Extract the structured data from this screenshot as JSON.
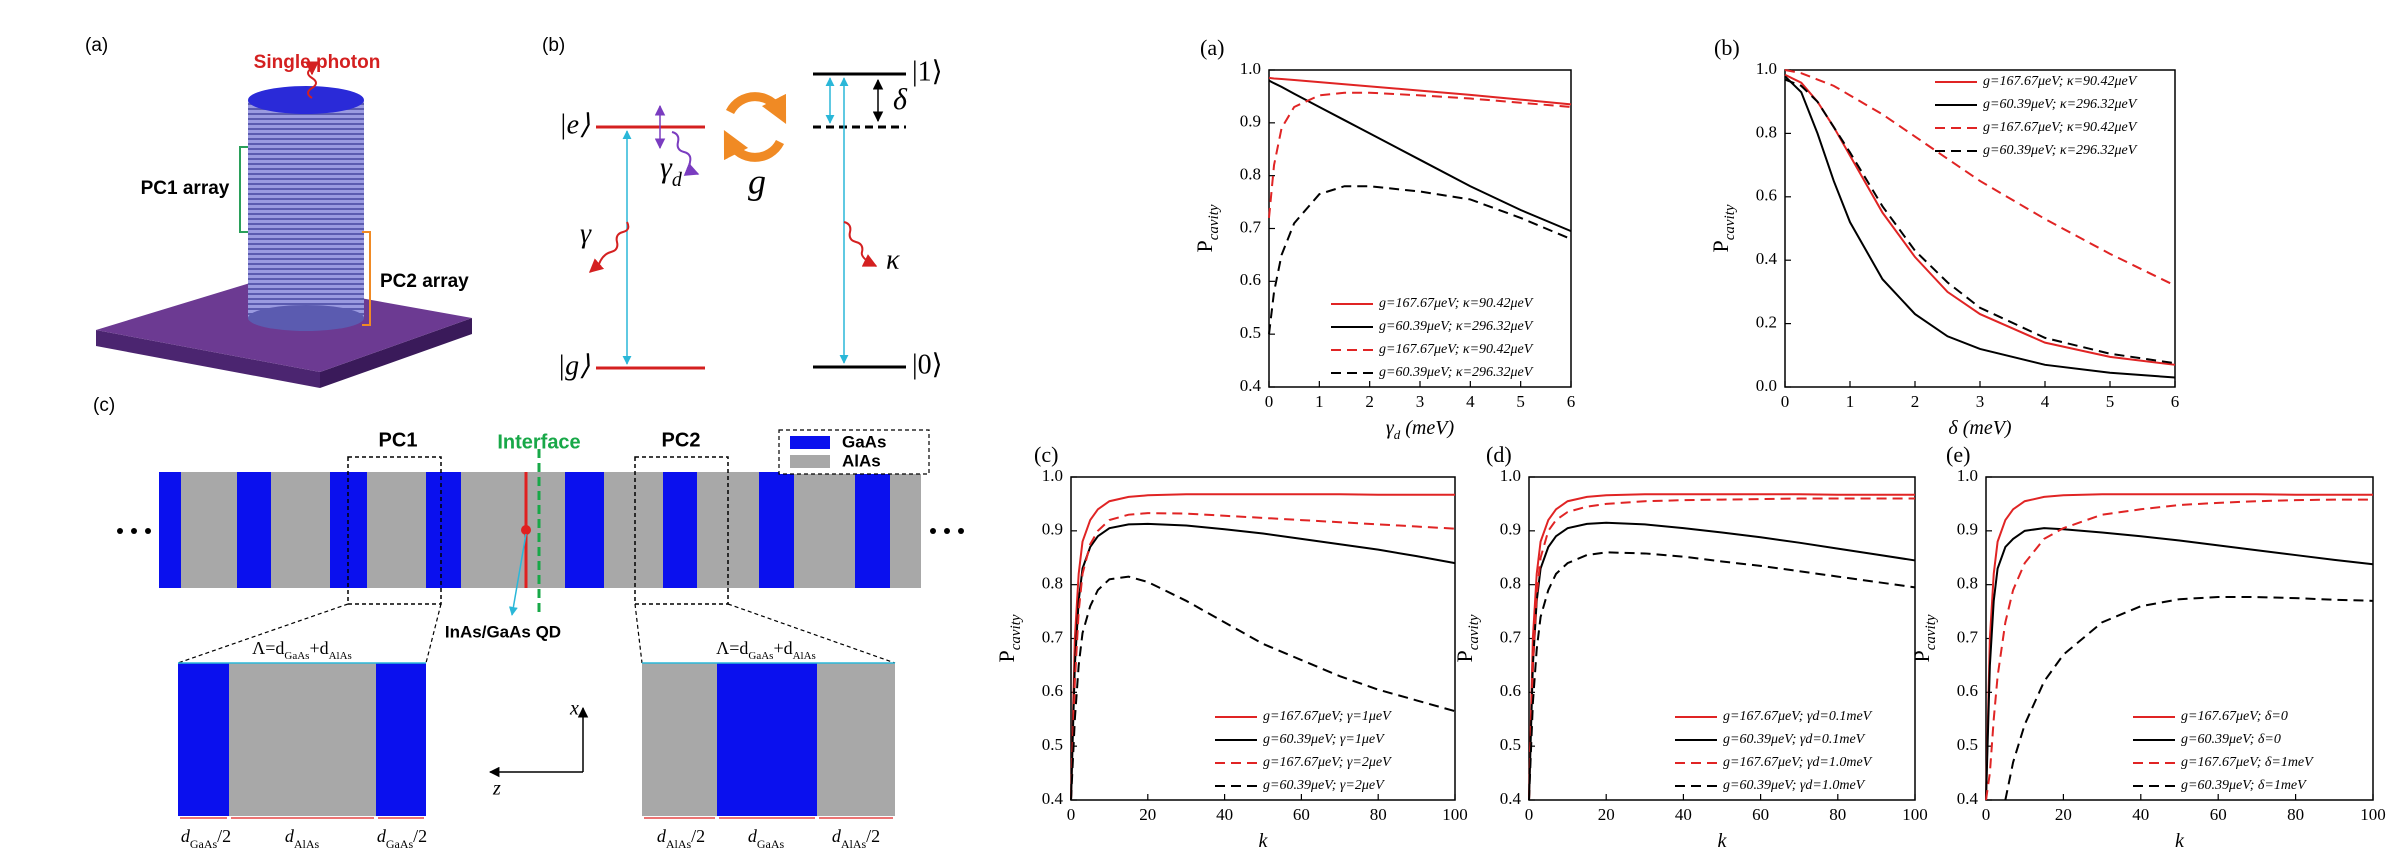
{
  "diagram": {
    "panel_a": {
      "label": "(a)",
      "single_photon": "Single photon",
      "pc1_array": "PC1 array",
      "pc2_array": "PC2 array"
    },
    "panel_b": {
      "label": "(b)",
      "ket_e": "|e⟩",
      "ket_g": "|g⟩",
      "ket_1": "|1⟩",
      "ket_0": "|0⟩",
      "delta": "δ",
      "coupling": "g",
      "gamma_d": "γ",
      "gamma_d_sub": "d",
      "gamma": "γ",
      "kappa": "κ"
    },
    "panel_c": {
      "label": "(c)",
      "pc1": "PC1",
      "interface": "Interface",
      "pc2": "PC2",
      "legend": [
        "GaAs",
        "AlAs"
      ],
      "qd": "InAs/GaAs QD",
      "period_left": [
        "Λ=d",
        "GaAs",
        "+d",
        "AlAs"
      ],
      "period_right": [
        "Λ=d",
        "GaAs",
        "+d",
        "AlAs"
      ],
      "x_axis": "x",
      "z_axis": "z",
      "widths_left": [
        [
          "d",
          "GaAs",
          "/2"
        ],
        [
          "d",
          "AlAs"
        ],
        [
          "d",
          "GaAs",
          "/2"
        ]
      ],
      "widths_right": [
        [
          "d",
          "AlAs",
          "/2"
        ],
        [
          "d",
          "GaAs"
        ],
        [
          "d",
          "AlAs",
          "/2"
        ]
      ]
    }
  },
  "chart_data": [
    {
      "type": "line",
      "label": "(a)",
      "xlabel": "γ",
      "xlabel_sub": "d",
      "xlabel_unit": "(meV)",
      "ylabel": "P",
      "ylabel_sub": "cavity",
      "x": [
        0,
        0.1,
        0.25,
        0.5,
        1,
        1.5,
        2,
        3,
        4,
        5,
        6
      ],
      "xlim": [
        0,
        6
      ],
      "xticks": [
        0,
        1,
        2,
        3,
        4,
        5,
        6
      ],
      "ylim": [
        0.4,
        1
      ],
      "yticks": [
        0.4,
        0.5,
        0.6,
        0.7,
        0.8,
        0.9,
        {
          "value": 1,
          "label": "1.0"
        }
      ],
      "legend_loc": "lower right",
      "series": [
        {
          "name": "g=167.67μeV;  κ=90.42μeV",
          "color": "#e02424",
          "linestyle": "solid",
          "values": [
            0.985,
            0.984,
            0.983,
            0.981,
            0.977,
            0.973,
            0.969,
            0.961,
            0.953,
            0.944,
            0.935
          ]
        },
        {
          "name": "g=60.39μeV;   κ=296.32μeV",
          "color": "#000000",
          "linestyle": "solid",
          "values": [
            0.98,
            0.975,
            0.968,
            0.955,
            0.93,
            0.905,
            0.88,
            0.83,
            0.78,
            0.735,
            0.695
          ]
        },
        {
          "name": "g=167.67μeV;  κ=90.42μeV",
          "color": "#e02424",
          "linestyle": "dashed",
          "values": [
            0.72,
            0.82,
            0.89,
            0.93,
            0.952,
            0.957,
            0.957,
            0.952,
            0.946,
            0.938,
            0.93
          ]
        },
        {
          "name": "g=60.39μeV;   κ=296.32μeV",
          "color": "#000000",
          "linestyle": "dashed",
          "values": [
            0.5,
            0.58,
            0.65,
            0.71,
            0.765,
            0.78,
            0.78,
            0.77,
            0.755,
            0.72,
            0.68
          ]
        }
      ]
    },
    {
      "type": "line",
      "label": "(b)",
      "xlabel": "δ (meV)",
      "ylabel": "P",
      "ylabel_sub": "cavity",
      "x": [
        0,
        0.25,
        0.5,
        0.75,
        1,
        1.5,
        2,
        2.5,
        3,
        4,
        5,
        6
      ],
      "xlim": [
        0,
        6
      ],
      "xticks": [
        0,
        1,
        2,
        3,
        4,
        5,
        6
      ],
      "ylim": [
        0,
        1
      ],
      "yticks": [
        {
          "value": 0,
          "label": "0.0"
        },
        0.2,
        0.4,
        0.6,
        0.8,
        {
          "value": 1,
          "label": "1.0"
        }
      ],
      "legend_loc": "upper right",
      "series": [
        {
          "name": "g=167.67μeV; κ=90.42μeV",
          "color": "#e02424",
          "linestyle": "solid",
          "values": [
            0.985,
            0.96,
            0.9,
            0.82,
            0.73,
            0.55,
            0.41,
            0.3,
            0.23,
            0.14,
            0.095,
            0.07
          ]
        },
        {
          "name": "g=60.39μeV;  κ=296.32μeV",
          "color": "#000000",
          "linestyle": "solid",
          "values": [
            0.98,
            0.93,
            0.8,
            0.65,
            0.52,
            0.34,
            0.23,
            0.16,
            0.12,
            0.07,
            0.045,
            0.03
          ]
        },
        {
          "name": "g=167.67μeV; κ=90.42μeV",
          "color": "#e02424",
          "linestyle": "dashed",
          "values": [
            1,
            0.99,
            0.97,
            0.95,
            0.92,
            0.86,
            0.79,
            0.72,
            0.65,
            0.53,
            0.42,
            0.32
          ]
        },
        {
          "name": "g=60.39μeV;  κ=296.32μeV",
          "color": "#000000",
          "linestyle": "dashed",
          "values": [
            0.97,
            0.95,
            0.9,
            0.82,
            0.74,
            0.57,
            0.43,
            0.33,
            0.25,
            0.155,
            0.105,
            0.075
          ]
        }
      ]
    },
    {
      "type": "line",
      "label": "(c)",
      "xlabel": "k",
      "ylabel": "P",
      "ylabel_sub": "cavity",
      "x": [
        0,
        1,
        2,
        3,
        5,
        7,
        10,
        15,
        20,
        30,
        40,
        50,
        60,
        70,
        80,
        90,
        100
      ],
      "xlim": [
        0,
        100
      ],
      "xticks": [
        0,
        20,
        40,
        60,
        80,
        100
      ],
      "ylim": [
        0.4,
        1
      ],
      "yticks": [
        0.4,
        0.5,
        0.6,
        0.7,
        0.8,
        0.9,
        {
          "value": 1,
          "label": "1.0"
        }
      ],
      "legend_loc": "lower right",
      "series": [
        {
          "name": "g=167.67μeV;  γ=1μeV",
          "color": "#e02424",
          "linestyle": "solid",
          "values": [
            0.4,
            0.7,
            0.82,
            0.88,
            0.92,
            0.94,
            0.955,
            0.963,
            0.966,
            0.968,
            0.968,
            0.968,
            0.968,
            0.968,
            0.967,
            0.967,
            0.967
          ]
        },
        {
          "name": "g=60.39μeV;   γ=1μeV",
          "color": "#000000",
          "linestyle": "solid",
          "values": [
            0.4,
            0.65,
            0.77,
            0.83,
            0.87,
            0.89,
            0.905,
            0.912,
            0.913,
            0.91,
            0.903,
            0.895,
            0.885,
            0.875,
            0.865,
            0.853,
            0.84
          ]
        },
        {
          "name": "g=167.67μeV;  γ=2μeV",
          "color": "#e02424",
          "linestyle": "dashed",
          "values": [
            0.4,
            0.62,
            0.75,
            0.82,
            0.875,
            0.9,
            0.92,
            0.93,
            0.933,
            0.932,
            0.928,
            0.924,
            0.92,
            0.916,
            0.912,
            0.908,
            0.904
          ]
        },
        {
          "name": "g=60.39μeV;   γ=2μeV",
          "color": "#000000",
          "linestyle": "dashed",
          "values": [
            0.4,
            0.55,
            0.65,
            0.71,
            0.76,
            0.79,
            0.81,
            0.815,
            0.805,
            0.77,
            0.73,
            0.69,
            0.66,
            0.63,
            0.605,
            0.585,
            0.565
          ]
        }
      ]
    },
    {
      "type": "line",
      "label": "(d)",
      "xlabel": "k",
      "ylabel": "P",
      "ylabel_sub": "cavity",
      "x": [
        0,
        1,
        2,
        3,
        5,
        7,
        10,
        15,
        20,
        30,
        40,
        50,
        60,
        70,
        80,
        90,
        100
      ],
      "xlim": [
        0,
        100
      ],
      "xticks": [
        0,
        20,
        40,
        60,
        80,
        100
      ],
      "ylim": [
        0.4,
        1
      ],
      "yticks": [
        0.4,
        0.5,
        0.6,
        0.7,
        0.8,
        0.9,
        {
          "value": 1,
          "label": "1.0"
        }
      ],
      "legend_loc": "lower right",
      "series": [
        {
          "name": "g=167.67μeV;  γd=0.1meV",
          "color": "#e02424",
          "linestyle": "solid",
          "values": [
            0.4,
            0.7,
            0.82,
            0.88,
            0.92,
            0.94,
            0.955,
            0.963,
            0.966,
            0.968,
            0.968,
            0.968,
            0.968,
            0.968,
            0.967,
            0.967,
            0.967
          ]
        },
        {
          "name": "g=60.39μeV;   γd=0.1meV",
          "color": "#000000",
          "linestyle": "solid",
          "values": [
            0.4,
            0.65,
            0.77,
            0.83,
            0.87,
            0.89,
            0.905,
            0.913,
            0.915,
            0.912,
            0.905,
            0.897,
            0.888,
            0.878,
            0.867,
            0.856,
            0.845
          ]
        },
        {
          "name": "g=167.67μeV;  γd=1.0meV",
          "color": "#e02424",
          "linestyle": "dashed",
          "values": [
            0.4,
            0.65,
            0.78,
            0.85,
            0.9,
            0.92,
            0.935,
            0.945,
            0.95,
            0.955,
            0.957,
            0.958,
            0.959,
            0.96,
            0.96,
            0.96,
            0.96
          ]
        },
        {
          "name": "g=60.39μeV;   γd=1.0meV",
          "color": "#000000",
          "linestyle": "dashed",
          "values": [
            0.4,
            0.58,
            0.68,
            0.74,
            0.79,
            0.82,
            0.84,
            0.855,
            0.86,
            0.858,
            0.852,
            0.843,
            0.835,
            0.825,
            0.815,
            0.805,
            0.795
          ]
        }
      ]
    },
    {
      "type": "line",
      "label": "(e)",
      "xlabel": "k",
      "ylabel": "P",
      "ylabel_sub": "cavity",
      "x": [
        0,
        1,
        2,
        3,
        5,
        7,
        10,
        15,
        20,
        30,
        40,
        50,
        60,
        70,
        80,
        90,
        100
      ],
      "xlim": [
        0,
        100
      ],
      "xticks": [
        0,
        20,
        40,
        60,
        80,
        100
      ],
      "ylim": [
        0.4,
        1
      ],
      "yticks": [
        0.4,
        0.5,
        0.6,
        0.7,
        0.8,
        0.9,
        {
          "value": 1,
          "label": "1.0"
        }
      ],
      "legend_loc": "lower right",
      "series": [
        {
          "name": "g=167.67μeV;  δ=0",
          "color": "#e02424",
          "linestyle": "solid",
          "values": [
            0.4,
            0.7,
            0.82,
            0.88,
            0.92,
            0.94,
            0.955,
            0.963,
            0.966,
            0.968,
            0.968,
            0.968,
            0.968,
            0.968,
            0.967,
            0.967,
            0.967
          ]
        },
        {
          "name": "g=60.39μeV;   δ=0",
          "color": "#000000",
          "linestyle": "solid",
          "values": [
            0.4,
            0.65,
            0.77,
            0.83,
            0.87,
            0.885,
            0.9,
            0.905,
            0.903,
            0.897,
            0.89,
            0.882,
            0.873,
            0.864,
            0.855,
            0.846,
            0.838
          ]
        },
        {
          "name": "g=167.67μeV;  δ=1meV",
          "color": "#e02424",
          "linestyle": "dashed",
          "values": [
            0.4,
            0.45,
            0.55,
            0.63,
            0.73,
            0.79,
            0.84,
            0.885,
            0.905,
            0.93,
            0.94,
            0.948,
            0.952,
            0.955,
            0.957,
            0.958,
            0.958
          ]
        },
        {
          "name": "g=60.39μeV;   δ=1meV",
          "color": "#000000",
          "linestyle": "dashed",
          "values": [
            null,
            null,
            null,
            null,
            0.4,
            0.47,
            0.54,
            0.62,
            0.67,
            0.73,
            0.76,
            0.773,
            0.777,
            0.777,
            0.775,
            0.772,
            0.77
          ]
        }
      ]
    }
  ]
}
